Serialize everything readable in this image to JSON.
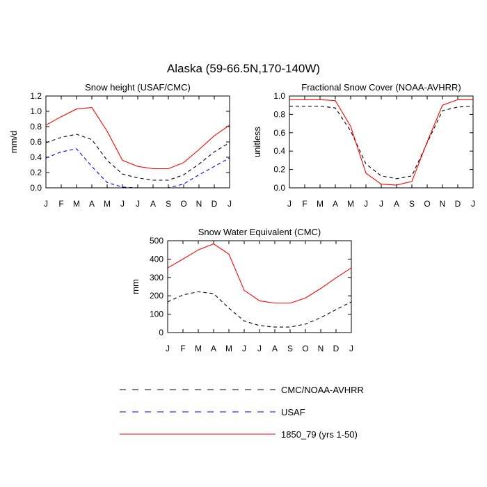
{
  "figure": {
    "title": "Alaska (59-66.5N,170-140W)"
  },
  "chart_data": [
    {
      "type": "line",
      "title": "Snow height (USAF/CMC)",
      "xlabel": "",
      "ylabel": "mm/d",
      "categories": [
        "J",
        "F",
        "M",
        "A",
        "M",
        "J",
        "J",
        "A",
        "S",
        "O",
        "N",
        "D",
        "J"
      ],
      "ylim": [
        0,
        1.2
      ],
      "yticks": [
        0.0,
        0.2,
        0.4,
        0.6,
        0.8,
        1.0,
        1.2
      ],
      "ytick_labels": [
        "0.0",
        "0.2",
        "0.4",
        "0.6",
        "0.8",
        "1.0",
        "1.2"
      ],
      "grid": false,
      "series": [
        {
          "name": "CMC/NOAA-AVHRR",
          "color": "#000000",
          "dash": "dashed",
          "values": [
            0.59,
            0.66,
            0.7,
            0.63,
            0.36,
            0.18,
            0.13,
            0.1,
            0.1,
            0.17,
            0.31,
            0.47,
            0.59
          ]
        },
        {
          "name": "USAF",
          "color": "#0000ff",
          "dash": "dashed",
          "values": [
            0.39,
            0.47,
            0.51,
            0.28,
            0.07,
            0.01,
            0.0,
            0.0,
            0.0,
            0.05,
            0.17,
            0.28,
            0.39
          ]
        },
        {
          "name": "1850_79 (yrs 1-50)",
          "color": "#ff0000",
          "dash": "solid",
          "values": [
            0.82,
            0.93,
            1.03,
            1.05,
            0.74,
            0.36,
            0.28,
            0.25,
            0.25,
            0.33,
            0.5,
            0.68,
            0.82
          ]
        }
      ]
    },
    {
      "type": "line",
      "title": "Fractional Snow Cover (NOAA-AVHRR)",
      "xlabel": "",
      "ylabel": "unitless",
      "categories": [
        "J",
        "F",
        "M",
        "A",
        "M",
        "J",
        "J",
        "A",
        "S",
        "O",
        "N",
        "D",
        "J"
      ],
      "ylim": [
        0,
        1.0
      ],
      "yticks": [
        0.0,
        0.2,
        0.4,
        0.6,
        0.8,
        1.0
      ],
      "ytick_labels": [
        "0.0",
        "0.2",
        "0.4",
        "0.6",
        "0.8",
        "1.0"
      ],
      "grid": false,
      "series": [
        {
          "name": "CMC/NOAA-AVHRR",
          "color": "#000000",
          "dash": "dashed",
          "values": [
            0.89,
            0.89,
            0.89,
            0.87,
            0.62,
            0.26,
            0.13,
            0.1,
            0.13,
            0.49,
            0.84,
            0.88,
            0.89
          ]
        },
        {
          "name": "1850_79 (yrs 1-50)",
          "color": "#ff0000",
          "dash": "solid",
          "values": [
            0.96,
            0.96,
            0.96,
            0.95,
            0.67,
            0.16,
            0.04,
            0.03,
            0.07,
            0.5,
            0.9,
            0.96,
            0.96
          ]
        }
      ]
    },
    {
      "type": "line",
      "title": "Snow Water Equivalent (CMC)",
      "xlabel": "",
      "ylabel": "mm",
      "categories": [
        "J",
        "F",
        "M",
        "A",
        "M",
        "J",
        "J",
        "A",
        "S",
        "O",
        "N",
        "D",
        "J"
      ],
      "ylim": [
        0,
        500
      ],
      "yticks": [
        0,
        100,
        200,
        300,
        400,
        500
      ],
      "ytick_labels": [
        "0",
        "100",
        "200",
        "300",
        "400",
        "500"
      ],
      "grid": false,
      "series": [
        {
          "name": "CMC/NOAA-AVHRR",
          "color": "#000000",
          "dash": "dashed",
          "values": [
            167,
            205,
            222,
            212,
            133,
            63,
            38,
            30,
            30,
            46,
            81,
            125,
            167
          ]
        },
        {
          "name": "1850_79 (yrs 1-50)",
          "color": "#ff0000",
          "dash": "solid",
          "values": [
            352,
            400,
            450,
            483,
            427,
            230,
            173,
            160,
            160,
            188,
            240,
            298,
            352
          ]
        }
      ]
    }
  ],
  "legend": {
    "placement": "bottom",
    "entries": [
      {
        "label": "CMC/NOAA-AVHRR",
        "color": "#000000",
        "dash": "dashed"
      },
      {
        "label": "USAF",
        "color": "#0000ff",
        "dash": "dashed"
      },
      {
        "label": "1850_79 (yrs 1-50)",
        "color": "#ff0000",
        "dash": "solid"
      }
    ]
  }
}
